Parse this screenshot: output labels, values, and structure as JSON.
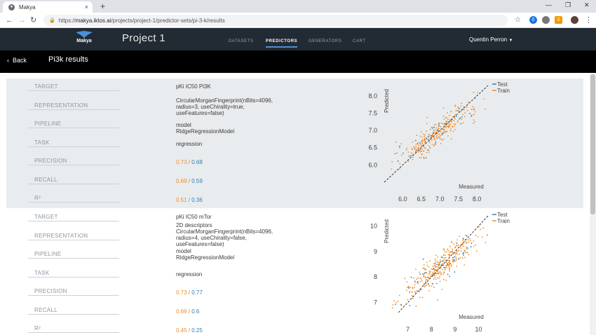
{
  "browser": {
    "tab_title": "Makya",
    "url_host": "makya.iktos.ai",
    "url_rest": "/projects/project-1/predictor-sets/pi-3-k/results",
    "url_prefix": "https://"
  },
  "app": {
    "logo_text": "Makya",
    "project_title": "Project 1",
    "nav": [
      "DATASETS",
      "PREDICTORS",
      "GENERATORS",
      "CART"
    ],
    "active_nav": "PREDICTORS",
    "user": "Quentin Perron",
    "back_label": "Back",
    "page_title": "Pi3k results"
  },
  "labels": {
    "target": "TARGET",
    "representation": "REPRESENTATION",
    "pipeline": "PIPELINE",
    "task": "TASK",
    "precision": "PRECISION",
    "recall": "RECALL",
    "r2": "R²"
  },
  "results": [
    {
      "target": "pKi IC50 Pi3K",
      "representation": [
        "CircularMorganFingerprint(nBits=4096,",
        "radius=3, useChirality=true,",
        "useFeatures=false)"
      ],
      "pipeline": [
        "model",
        "RidgeRegressionModel"
      ],
      "task": "regression",
      "precision": {
        "train": "0.73",
        "test": "0.68"
      },
      "recall": {
        "train": "0.69",
        "test": "0.59"
      },
      "r2": {
        "train": "0.51",
        "test": "0.36"
      }
    },
    {
      "target": "pKi IC50 mTor",
      "representation": [
        "2D descriptors",
        "CircularMorganFingerprint(nBits=4096,",
        "radius=4, useChirality=false,",
        "useFeatures=false)"
      ],
      "pipeline": [
        "model",
        "RidgeRegressionModel"
      ],
      "task": "regression",
      "precision": {
        "train": "0.73",
        "test": "0.77"
      },
      "recall": {
        "train": "0.69",
        "test": "0.6"
      },
      "r2": {
        "train": "0.45",
        "test": "0.25"
      }
    }
  ],
  "chart_data": [
    {
      "type": "scatter",
      "xlabel": "Measured",
      "ylabel": "Predicted",
      "xticks": [
        "6.0",
        "6.5",
        "7.0",
        "7.5",
        "8.0"
      ],
      "yticks": [
        "6.0",
        "6.5",
        "7.0",
        "7.5",
        "8.0"
      ],
      "xlim": [
        5.5,
        8.3
      ],
      "ylim": [
        5.5,
        8.3
      ],
      "series": [
        {
          "name": "Test",
          "color": "#2f7fb5"
        },
        {
          "name": "Train",
          "color": "#f38b24"
        }
      ],
      "center": 6.95,
      "spread": 0.55,
      "n_train": 260,
      "n_test": 40
    },
    {
      "type": "scatter",
      "xlabel": "Measured",
      "ylabel": "Predicted",
      "xticks": [
        "7",
        "8",
        "9",
        "10"
      ],
      "yticks": [
        "7",
        "8",
        "9",
        "10"
      ],
      "xlim": [
        6.0,
        10.4
      ],
      "ylim": [
        6.6,
        10.4
      ],
      "series": [
        {
          "name": "Test",
          "color": "#2f7fb5"
        },
        {
          "name": "Train",
          "color": "#f38b24"
        }
      ],
      "center": 8.45,
      "spread": 0.85,
      "n_train": 300,
      "n_test": 50
    }
  ]
}
